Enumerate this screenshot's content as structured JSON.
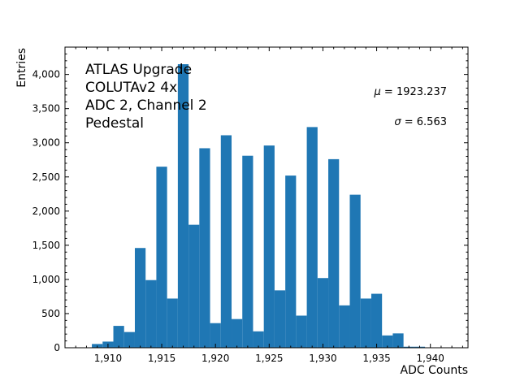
{
  "chart_data": {
    "type": "bar",
    "title": "",
    "xlabel": "ADC Counts",
    "ylabel": "Entries",
    "xlim": [
      1906,
      1943.5
    ],
    "ylim": [
      0,
      4400
    ],
    "grid": false,
    "color": "#1f77b4",
    "bin_width": 1,
    "x_ticks": [
      {
        "value": 1910,
        "label": "1,910"
      },
      {
        "value": 1915,
        "label": "1,915"
      },
      {
        "value": 1920,
        "label": "1,920"
      },
      {
        "value": 1925,
        "label": "1,925"
      },
      {
        "value": 1930,
        "label": "1,930"
      },
      {
        "value": 1935,
        "label": "1,935"
      },
      {
        "value": 1940,
        "label": "1,940"
      }
    ],
    "y_ticks": [
      {
        "value": 0,
        "label": "0"
      },
      {
        "value": 500,
        "label": "500"
      },
      {
        "value": 1000,
        "label": "1,000"
      },
      {
        "value": 1500,
        "label": "1,500"
      },
      {
        "value": 2000,
        "label": "2,000"
      },
      {
        "value": 2500,
        "label": "2,500"
      },
      {
        "value": 3000,
        "label": "3,000"
      },
      {
        "value": 3500,
        "label": "3,500"
      },
      {
        "value": 4000,
        "label": "4,000"
      }
    ],
    "bins": [
      1909,
      1910,
      1911,
      1912,
      1913,
      1914,
      1915,
      1916,
      1917,
      1918,
      1919,
      1920,
      1921,
      1922,
      1923,
      1924,
      1925,
      1926,
      1927,
      1928,
      1929,
      1930,
      1931,
      1932,
      1933,
      1934,
      1935,
      1936,
      1937,
      1938,
      1939
    ],
    "values": [
      55,
      90,
      320,
      230,
      1460,
      990,
      2650,
      720,
      4150,
      1800,
      2920,
      360,
      3110,
      420,
      2810,
      240,
      2960,
      840,
      2520,
      470,
      3230,
      1020,
      2760,
      620,
      2240,
      720,
      790,
      180,
      210,
      15,
      15
    ],
    "annotations": [
      {
        "name": "annot-atlas-upgrade",
        "text": "ATLAS Upgrade"
      },
      {
        "name": "annot-coluta",
        "text": "COLUTAv2 4x"
      },
      {
        "name": "annot-adc-channel",
        "text": "ADC 2, Channel 2"
      },
      {
        "name": "annot-pedestal",
        "text": "Pedestal"
      }
    ],
    "stats": {
      "mean_symbol": "μ",
      "mean_value": "1923.237",
      "sigma_symbol": "σ",
      "sigma_value": "6.563"
    }
  }
}
